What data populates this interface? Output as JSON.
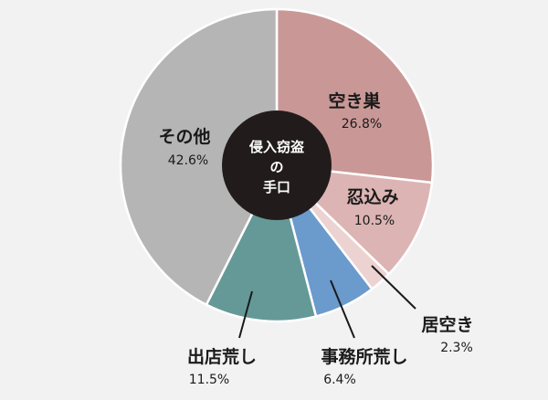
{
  "chart_data": {
    "type": "pie",
    "title": "",
    "center_label": [
      "侵入窃盗",
      "の",
      "手口"
    ],
    "slices": [
      {
        "label": "空き巣",
        "value": 26.8,
        "value_text": "26.8%",
        "color": "#c99896"
      },
      {
        "label": "忍込み",
        "value": 10.5,
        "value_text": "10.5%",
        "color": "#ddb4b4"
      },
      {
        "label": "居空き",
        "value": 2.3,
        "value_text": "2.3%",
        "color": "#ecd3d2"
      },
      {
        "label": "事務所荒し",
        "value": 6.4,
        "value_text": "6.4%",
        "color": "#6b9acc"
      },
      {
        "label": "出店荒し",
        "value": 11.5,
        "value_text": "11.5%",
        "color": "#659997"
      },
      {
        "label": "その他",
        "value": 42.6,
        "value_text": "42.6%",
        "color": "#b5b5b5"
      }
    ]
  }
}
